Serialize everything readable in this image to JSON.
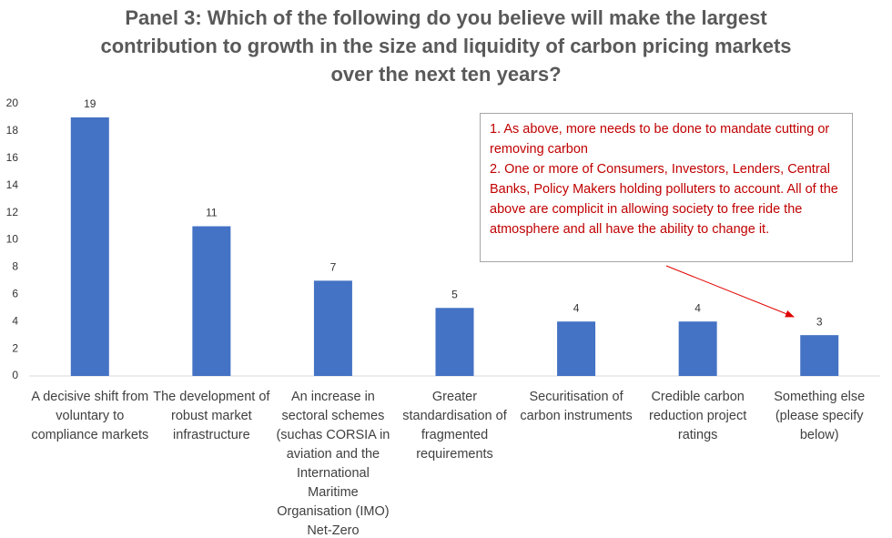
{
  "chart_data": {
    "type": "bar",
    "title": "Panel 3: Which of the following do you believe will make the largest contribution to growth in the size and liquidity of carbon pricing markets over the next ten years?",
    "categories": [
      "A decisive shift from voluntary to compliance markets",
      "The development of robust market infrastructure",
      "An increase in sectoral schemes (suchas CORSIA in aviation and the International Maritime Organisation (IMO) Net-Zero",
      "Greater standardisation of fragmented requirements",
      "Securitisation of carbon instruments",
      "Credible carbon reduction project ratings",
      "Something else (please specify below)"
    ],
    "values": [
      19,
      11,
      7,
      5,
      4,
      4,
      3
    ],
    "color": "#4472c4",
    "ylim": [
      0,
      20
    ],
    "yticks": [
      0,
      2,
      4,
      6,
      8,
      10,
      12,
      14,
      16,
      18,
      20
    ],
    "grid": false,
    "annotation": [
      "1. As above, more needs to be done to mandate cutting or removing carbon",
      "2. One or more of Consumers, Investors, Lenders, Central Banks, Policy Makers holding polluters to account.  All of the above are complicit in allowing society to free ride the atmosphere and all have the ability to change it."
    ]
  }
}
